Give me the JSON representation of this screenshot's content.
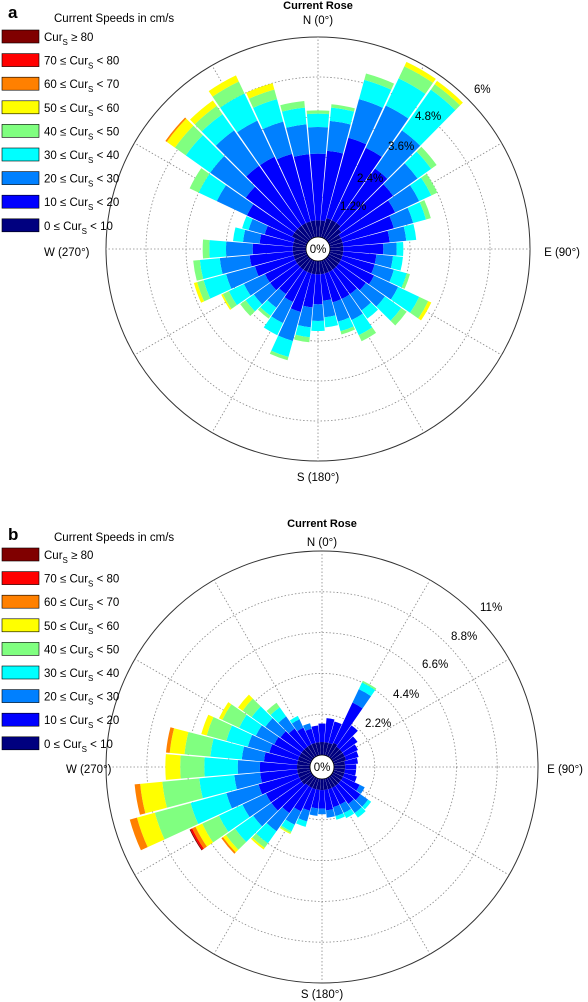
{
  "chart_data": [
    {
      "panel": "a",
      "type": "polar-stacked-bar",
      "title": "Current Rose",
      "legend_title": "Current Speeds in cm/s",
      "legend_placement": "top-left",
      "directions": [
        "N (0°)",
        "E (90°)",
        "S (180°)",
        "W (270°)"
      ],
      "radial_tick_labels": [
        "1.2%",
        "2.4%",
        "3.6%",
        "4.8%",
        "6%"
      ],
      "center_label": "0%",
      "max_percent": 6,
      "sector_width_deg": 10,
      "classes": [
        {
          "name": "0 ≤ CurS < 10",
          "color": "#00007f"
        },
        {
          "name": "10 ≤ CurS < 20",
          "color": "#0000ff"
        },
        {
          "name": "20 ≤ CurS < 30",
          "color": "#0080ff"
        },
        {
          "name": "30 ≤ CurS < 40",
          "color": "#00ffff"
        },
        {
          "name": "40 ≤ CurS < 50",
          "color": "#80ff80"
        },
        {
          "name": "50 ≤ CurS < 60",
          "color": "#ffff00"
        },
        {
          "name": "60 ≤ CurS < 70",
          "color": "#ff8000"
        },
        {
          "name": "70 ≤ CurS < 80",
          "color": "#ff0000"
        },
        {
          "name": "CurS ≥ 80",
          "color": "#800000"
        }
      ],
      "sectors": [
        {
          "dir": 0,
          "values": [
            0.5,
            2.0,
            0.8,
            0.4,
            0.1
          ]
        },
        {
          "dir": 10,
          "values": [
            0.5,
            2.1,
            0.9,
            0.4,
            0.1
          ]
        },
        {
          "dir": 20,
          "values": [
            0.6,
            2.5,
            1.2,
            0.6,
            0.2
          ]
        },
        {
          "dir": 30,
          "values": [
            0.6,
            2.4,
            1.4,
            0.9,
            0.4,
            0.15
          ]
        },
        {
          "dir": 40,
          "values": [
            0.6,
            2.0,
            1.4,
            1.5,
            0.2,
            0.12
          ]
        },
        {
          "dir": 50,
          "values": [
            0.5,
            1.9,
            0.9,
            0.5,
            0.2
          ]
        },
        {
          "dir": 60,
          "values": [
            0.4,
            1.8,
            0.8,
            0.4,
            0.2
          ]
        },
        {
          "dir": 70,
          "values": [
            0.4,
            1.6,
            0.6,
            0.4,
            0.15
          ]
        },
        {
          "dir": 80,
          "values": [
            0.4,
            1.4,
            0.5,
            0.3
          ]
        },
        {
          "dir": 90,
          "values": [
            0.4,
            1.2,
            0.4,
            0.2
          ]
        },
        {
          "dir": 100,
          "values": [
            0.4,
            1.0,
            0.5,
            0.3
          ]
        },
        {
          "dir": 110,
          "values": [
            0.4,
            1.0,
            0.6,
            0.4,
            0.1
          ]
        },
        {
          "dir": 120,
          "values": [
            0.4,
            1.1,
            0.8,
            0.7,
            0.3,
            0.1
          ]
        },
        {
          "dir": 130,
          "values": [
            0.4,
            1.0,
            0.7,
            0.6,
            0.2
          ]
        },
        {
          "dir": 140,
          "values": [
            0.4,
            0.9,
            0.6,
            0.3
          ]
        },
        {
          "dir": 150,
          "values": [
            0.4,
            0.9,
            0.7,
            0.5,
            0.2
          ]
        },
        {
          "dir": 160,
          "values": [
            0.4,
            0.9,
            0.6,
            0.3,
            0.1
          ]
        },
        {
          "dir": 170,
          "values": [
            0.4,
            0.8,
            0.5,
            0.3
          ]
        },
        {
          "dir": 180,
          "values": [
            0.4,
            0.9,
            0.5,
            0.3
          ]
        },
        {
          "dir": 190,
          "values": [
            0.4,
            1.0,
            0.6,
            0.3,
            0.15
          ]
        },
        {
          "dir": 200,
          "values": [
            0.4,
            1.2,
            0.9,
            0.5,
            0.1
          ]
        },
        {
          "dir": 210,
          "values": [
            0.4,
            1.0,
            0.7,
            0.4
          ]
        },
        {
          "dir": 220,
          "values": [
            0.4,
            0.9,
            0.5,
            0.3,
            0.1
          ]
        },
        {
          "dir": 230,
          "values": [
            0.4,
            1.0,
            0.6,
            0.3,
            0.2
          ]
        },
        {
          "dir": 240,
          "values": [
            0.4,
            1.0,
            0.7,
            0.5,
            0.2,
            0.05
          ]
        },
        {
          "dir": 250,
          "values": [
            0.4,
            1.2,
            0.9,
            0.7,
            0.2,
            0.1
          ]
        },
        {
          "dir": 260,
          "values": [
            0.4,
            1.3,
            0.9,
            0.6,
            0.2
          ]
        },
        {
          "dir": 270,
          "values": [
            0.4,
            1.2,
            0.8,
            0.5,
            0.2
          ]
        },
        {
          "dir": 280,
          "values": [
            0.4,
            1.0,
            0.5,
            0.3
          ]
        },
        {
          "dir": 290,
          "values": [
            0.4,
            0.9,
            0.5,
            0.2
          ]
        },
        {
          "dir": 300,
          "values": [
            0.5,
            1.5,
            1.0,
            0.6,
            0.3
          ]
        },
        {
          "dir": 310,
          "values": [
            0.5,
            1.8,
            1.3,
            0.9,
            0.4,
            0.3,
            0.05
          ]
        },
        {
          "dir": 320,
          "values": [
            0.5,
            2.2,
            1.3,
            0.6,
            0.3,
            0.2
          ]
        },
        {
          "dir": 330,
          "values": [
            0.5,
            2.2,
            1.2,
            0.9,
            0.4,
            0.2
          ]
        },
        {
          "dir": 340,
          "values": [
            0.5,
            2.1,
            1.0,
            0.7,
            0.3,
            0.2
          ]
        },
        {
          "dir": 350,
          "values": [
            0.5,
            2.0,
            0.9,
            0.5,
            0.2
          ]
        }
      ]
    },
    {
      "panel": "b",
      "type": "polar-stacked-bar",
      "title": "Current Rose",
      "legend_title": "Current Speeds in cm/s",
      "legend_placement": "top-left",
      "directions": [
        "N (0°)",
        "E (90°)",
        "S (180°)",
        "W (270°)"
      ],
      "radial_tick_labels": [
        "2.2%",
        "4.4%",
        "6.6%",
        "8.8%",
        "11%"
      ],
      "center_label": "0%",
      "max_percent": 11,
      "sector_width_deg": 10,
      "classes": [
        {
          "name": "0 ≤ CurS < 10",
          "color": "#00007f"
        },
        {
          "name": "10 ≤ CurS < 20",
          "color": "#0000ff"
        },
        {
          "name": "20 ≤ CurS < 30",
          "color": "#0080ff"
        },
        {
          "name": "30 ≤ CurS < 40",
          "color": "#00ffff"
        },
        {
          "name": "40 ≤ CurS < 50",
          "color": "#80ff80"
        },
        {
          "name": "50 ≤ CurS < 60",
          "color": "#ffff00"
        },
        {
          "name": "60 ≤ CurS < 70",
          "color": "#ff8000"
        },
        {
          "name": "70 ≤ CurS < 80",
          "color": "#ff0000"
        },
        {
          "name": "CurS ≥ 80",
          "color": "#800000"
        }
      ],
      "sectors": [
        {
          "dir": 0,
          "values": [
            0.7,
            1.0
          ]
        },
        {
          "dir": 10,
          "values": [
            0.7,
            1.3
          ]
        },
        {
          "dir": 20,
          "values": [
            0.7,
            1.2
          ]
        },
        {
          "dir": 30,
          "values": [
            0.8,
            2.4,
            0.8,
            0.4,
            0.1
          ]
        },
        {
          "dir": 40,
          "values": [
            0.7,
            1.4
          ]
        },
        {
          "dir": 50,
          "values": [
            0.7,
            1.0
          ]
        },
        {
          "dir": 60,
          "values": [
            0.7,
            0.8
          ]
        },
        {
          "dir": 70,
          "values": [
            0.7,
            0.7
          ]
        },
        {
          "dir": 80,
          "values": [
            0.6,
            0.7
          ]
        },
        {
          "dir": 90,
          "values": [
            0.6,
            0.6
          ]
        },
        {
          "dir": 100,
          "values": [
            0.6,
            0.6
          ]
        },
        {
          "dir": 110,
          "values": [
            0.6,
            0.7
          ]
        },
        {
          "dir": 120,
          "values": [
            0.6,
            1.0,
            0.3
          ]
        },
        {
          "dir": 130,
          "values": [
            0.6,
            1.3,
            0.5,
            0.2
          ]
        },
        {
          "dir": 140,
          "values": [
            0.6,
            1.2,
            0.6,
            0.3
          ]
        },
        {
          "dir": 150,
          "values": [
            0.6,
            1.0,
            0.5,
            0.3
          ]
        },
        {
          "dir": 160,
          "values": [
            0.6,
            1.0,
            0.5,
            0.2
          ]
        },
        {
          "dir": 170,
          "values": [
            0.6,
            1.1,
            0.4
          ]
        },
        {
          "dir": 180,
          "values": [
            0.6,
            1.0,
            0.3
          ]
        },
        {
          "dir": 190,
          "values": [
            0.6,
            1.0,
            0.4
          ]
        },
        {
          "dir": 200,
          "values": [
            0.6,
            1.2,
            0.6,
            0.3
          ]
        },
        {
          "dir": 210,
          "values": [
            0.6,
            1.4,
            0.8,
            0.4,
            0.1,
            0.05
          ]
        },
        {
          "dir": 220,
          "values": [
            0.6,
            1.8,
            1.2,
            0.8,
            0.3,
            0.1
          ]
        },
        {
          "dir": 230,
          "values": [
            0.7,
            2.0,
            1.2,
            1.2,
            0.6,
            0.2,
            0.1
          ]
        },
        {
          "dir": 240,
          "values": [
            0.7,
            2.0,
            1.4,
            1.4,
            1.0,
            0.4,
            0.2,
            0.1,
            0.05
          ]
        },
        {
          "dir": 250,
          "values": [
            0.7,
            2.2,
            1.8,
            2.0,
            2.0,
            1.0,
            0.4
          ]
        },
        {
          "dir": 260,
          "values": [
            0.7,
            2.0,
            1.4,
            1.9,
            2.0,
            1.2,
            0.3
          ]
        },
        {
          "dir": 270,
          "values": [
            0.7,
            2.0,
            1.2,
            1.8,
            1.3,
            0.8
          ]
        },
        {
          "dir": 280,
          "values": [
            0.7,
            1.8,
            1.2,
            1.7,
            1.4,
            0.8,
            0.2
          ]
        },
        {
          "dir": 290,
          "values": [
            0.7,
            1.6,
            1.2,
            1.2,
            1.1,
            0.3
          ]
        },
        {
          "dir": 300,
          "values": [
            0.7,
            1.5,
            1.1,
            1.0,
            1.0,
            0.2
          ]
        },
        {
          "dir": 310,
          "values": [
            0.7,
            1.4,
            1.0,
            0.9,
            0.6,
            0.3
          ]
        },
        {
          "dir": 320,
          "values": [
            0.7,
            1.2,
            0.8,
            0.6,
            0.3
          ]
        },
        {
          "dir": 330,
          "values": [
            0.7,
            1.0,
            0.5,
            0.2
          ]
        },
        {
          "dir": 340,
          "values": [
            0.7,
            0.8,
            0.3
          ]
        },
        {
          "dir": 350,
          "values": [
            0.7,
            0.9
          ]
        }
      ]
    }
  ]
}
